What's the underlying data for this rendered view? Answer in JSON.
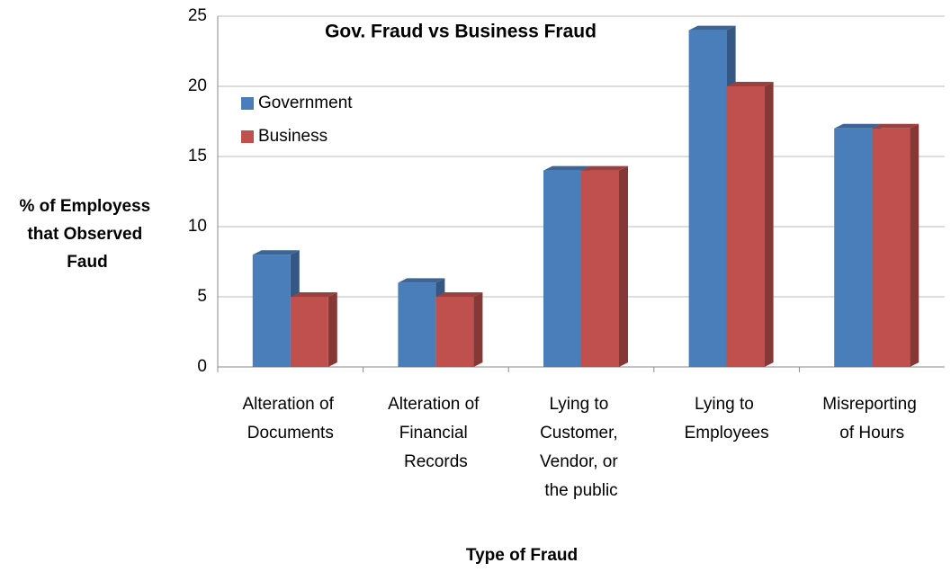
{
  "chart_data": {
    "type": "bar",
    "title": "Gov. Fraud vs Business Fraud",
    "x_label": "Type of Fraud",
    "y_label": "% of Employess that Observed Faud",
    "categories": [
      "Alteration of Documents",
      "Alteration of Financial Records",
      "Lying to Customer, Vendor, or the public",
      "Lying to Employees",
      "Misreporting of Hours"
    ],
    "series": [
      {
        "name": "Government",
        "color": "#4a7ebb",
        "values": [
          8,
          6,
          14,
          24,
          17
        ]
      },
      {
        "name": "Business",
        "color": "#c0504d",
        "values": [
          5,
          5,
          14,
          20,
          17
        ]
      }
    ],
    "ylim": [
      0,
      25
    ],
    "yticks": [
      0,
      5,
      10,
      15,
      20,
      25
    ],
    "grid": true,
    "legend": "upper left"
  }
}
